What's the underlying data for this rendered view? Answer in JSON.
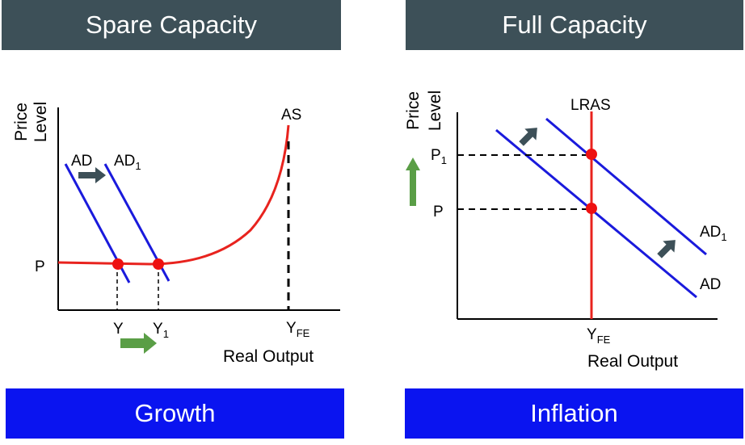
{
  "left_panel": {
    "title": "Spare Capacity",
    "caption": "Growth",
    "y_axis_label_line1": "Price",
    "y_axis_label_line2": "Level",
    "x_axis_label": "Real Output",
    "curve_labels": {
      "ad": "AD",
      "ad1_main": "AD",
      "ad1_sub": "1",
      "as": "AS"
    },
    "price_label": "P",
    "output_labels": {
      "y": "Y",
      "y1_main": "Y",
      "y1_sub": "1",
      "yfe_main": "Y",
      "yfe_sub": "FE"
    }
  },
  "right_panel": {
    "title": "Full Capacity",
    "caption": "Inflation",
    "y_axis_label_line1": "Price",
    "y_axis_label_line2": "Level",
    "x_axis_label": "Real Output",
    "curve_labels": {
      "lras": "LRAS",
      "ad": "AD",
      "ad1_main": "AD",
      "ad1_sub": "1"
    },
    "price_labels": {
      "p": "P",
      "p1_main": "P",
      "p1_sub": "1"
    },
    "output_labels": {
      "yfe_main": "Y",
      "yfe_sub": "FE"
    }
  },
  "colors": {
    "banner_dark": "#3d5058",
    "banner_blue": "#0a14f0",
    "demand_line": "#1a1adc",
    "supply_line": "#e8231e",
    "equilibrium_point": "#ee1111",
    "shift_arrow_dark": "#3d5058",
    "change_arrow_green": "#5a9e46"
  }
}
